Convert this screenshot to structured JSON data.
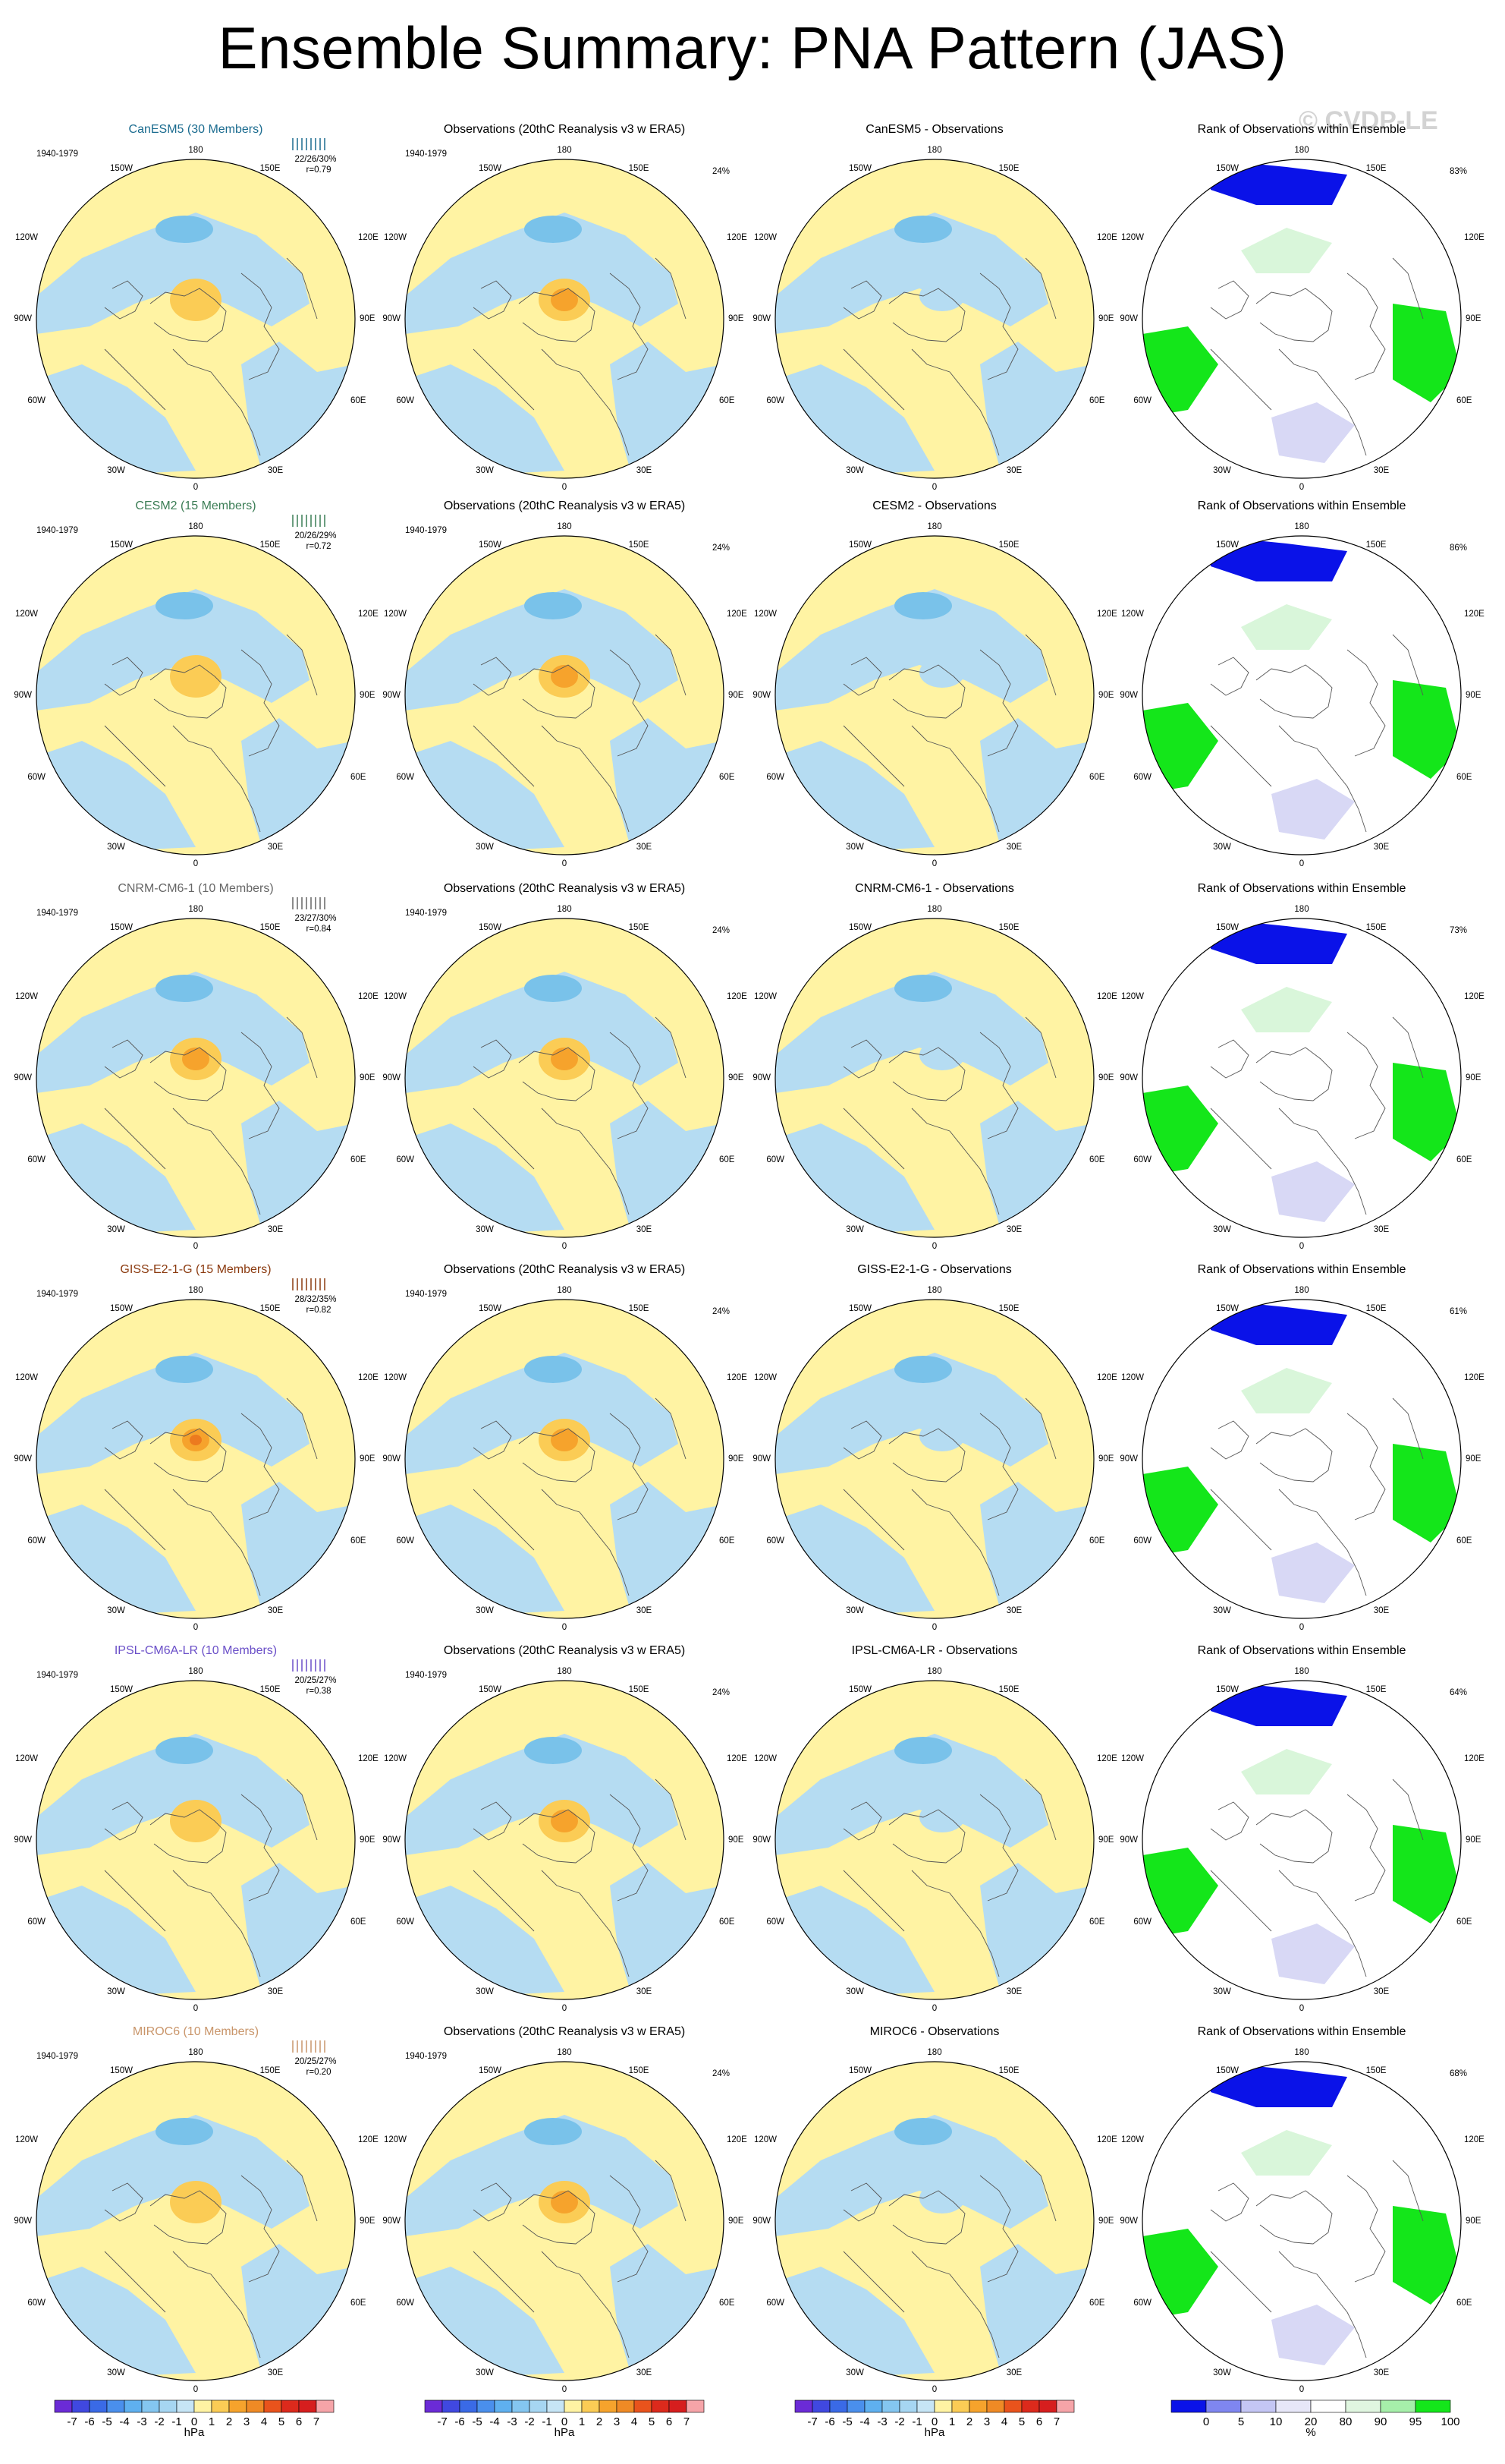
{
  "title": "Ensemble Summary: PNA Pattern (JAS)",
  "watermark": "© CVDP-LE",
  "period": "1940-1979",
  "lon_labels": {
    "top": "180",
    "tl": "150W",
    "tr": "150E",
    "ul": "120W",
    "ur": "120E",
    "l": "90W",
    "r": "90E",
    "ll": "60W",
    "lr": "60E",
    "bl": "30W",
    "br": "30E",
    "bottom": "0"
  },
  "colors": {
    "yellow": "#fff3a3",
    "lightblue": "#b5dcf2",
    "orange1": "#fbcc55",
    "orange2": "#f6a32c",
    "orange3": "#ec7a1f",
    "blue1": "#79c2ea",
    "blue2": "#4aa3dc",
    "rank_blue": "#0a12e8",
    "rank_lightblue": "#d8d8f5",
    "rank_green": "#14e61a",
    "rank_lightgreen": "#d9f6da",
    "land": "#555555"
  },
  "rows": [
    {
      "model": "CanESM5 (30 Members)",
      "color": "#1a6b8f",
      "obs_title": "Observations (20thC Reanalysis v3 w ERA5)",
      "diff_title": "CanESM5 - Observations",
      "rank_title": "Rank of Observations within Ensemble",
      "stats1": "22/26/30%",
      "stats2": "r=0.79",
      "obs_pct": "24%",
      "rank_pct": "83%"
    },
    {
      "model": "CESM2 (15 Members)",
      "color": "#3b7d55",
      "obs_title": "Observations (20thC Reanalysis v3 w ERA5)",
      "diff_title": "CESM2 - Observations",
      "rank_title": "Rank of Observations within Ensemble",
      "stats1": "20/26/29%",
      "stats2": "r=0.72",
      "obs_pct": "24%",
      "rank_pct": "86%"
    },
    {
      "model": "CNRM-CM6-1 (10 Members)",
      "color": "#666666",
      "obs_title": "Observations (20thC Reanalysis v3 w ERA5)",
      "diff_title": "CNRM-CM6-1 - Observations",
      "rank_title": "Rank of Observations within Ensemble",
      "stats1": "23/27/30%",
      "stats2": "r=0.84",
      "obs_pct": "24%",
      "rank_pct": "73%"
    },
    {
      "model": "GISS-E2-1-G (15 Members)",
      "color": "#8b3a0f",
      "obs_title": "Observations (20thC Reanalysis v3 w ERA5)",
      "diff_title": "GISS-E2-1-G - Observations",
      "rank_title": "Rank of Observations within Ensemble",
      "stats1": "28/32/35%",
      "stats2": "r=0.82",
      "obs_pct": "24%",
      "rank_pct": "61%"
    },
    {
      "model": "IPSL-CM6A-LR (10 Members)",
      "color": "#6a4fc8",
      "obs_title": "Observations (20thC Reanalysis v3 w ERA5)",
      "diff_title": "IPSL-CM6A-LR - Observations",
      "rank_title": "Rank of Observations within Ensemble",
      "stats1": "20/25/27%",
      "stats2": "r=0.38",
      "obs_pct": "24%",
      "rank_pct": "64%"
    },
    {
      "model": "MIROC6 (10 Members)",
      "color": "#c9956a",
      "obs_title": "Observations (20thC Reanalysis v3 w ERA5)",
      "diff_title": "MIROC6 - Observations",
      "rank_title": "Rank of Observations within Ensemble",
      "stats1": "20/25/27%",
      "stats2": "r=0.20",
      "obs_pct": "24%",
      "rank_pct": "68%"
    }
  ],
  "chart_data": {
    "type": "heatmap",
    "panels_per_row": 4,
    "colorbar_hpa": {
      "ticks": [
        "-7",
        "-6",
        "-5",
        "-4",
        "-3",
        "-2",
        "-1",
        "0",
        "1",
        "2",
        "3",
        "4",
        "5",
        "6",
        "7"
      ],
      "label": "hPa",
      "colors": [
        "#6b2bd6",
        "#4048e0",
        "#3a6ae6",
        "#4a8fec",
        "#5fb0ef",
        "#84c6f0",
        "#a6d6f2",
        "#c6e5f5",
        "#fff3a3",
        "#fbcc55",
        "#f6a32c",
        "#ef8a25",
        "#e9531c",
        "#dc2a1c",
        "#d61e1e",
        "#f6a4a8"
      ]
    },
    "colorbar_rank": {
      "ticks": [
        "0",
        "5",
        "10",
        "20",
        "80",
        "90",
        "95",
        "100"
      ],
      "label": "%",
      "colors": [
        "#0a12e8",
        "#7f86f0",
        "#c4c6f4",
        "#e7e7f8",
        "#ffffff",
        "#e0f6e0",
        "#a6efaa",
        "#14e61a"
      ]
    }
  }
}
